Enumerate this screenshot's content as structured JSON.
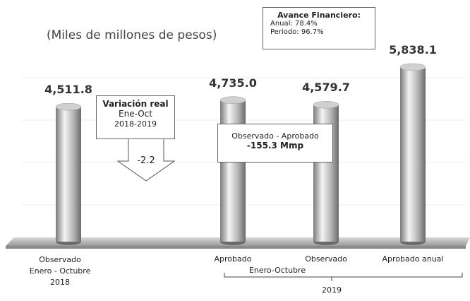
{
  "chart_data": {
    "type": "bar",
    "subtitle": "(Miles de millones de pesos)",
    "categories": [
      "Observado\nEnero - Octubre\n2018",
      "Aprobado",
      "Observado",
      "Aprobado anual"
    ],
    "values": [
      4511.8,
      4735.0,
      4579.7,
      5838.1
    ],
    "value_labels": [
      "4,511.8",
      "4,735.0",
      "4,579.7",
      "5,838.1"
    ],
    "color": "#9a9a9a",
    "group_labels": [
      "Enero-Octubre",
      "2019"
    ],
    "annotations": {
      "avance": [
        "Avance Financiero:",
        "Anual: 78.4%",
        "Periodo: 96.7%"
      ],
      "variacion": [
        "Variación real",
        "Ene-Oct",
        "2018-2019"
      ],
      "variacion_value": "-2.2",
      "diferencia": [
        "Observado - Aprobado",
        "-155.3 Mmp"
      ]
    }
  }
}
